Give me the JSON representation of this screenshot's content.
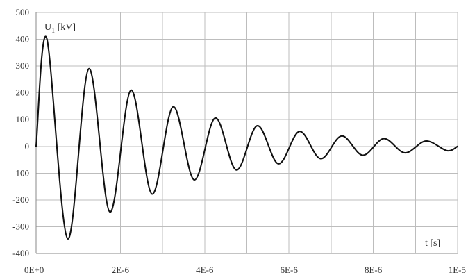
{
  "chart_data": {
    "type": "line",
    "title": "",
    "ylabel": {
      "main": "U",
      "sub": "1",
      "unit": " [kV]"
    },
    "xlabel": "t [s]",
    "xlim": [
      0,
      1e-05
    ],
    "ylim": [
      -400,
      500
    ],
    "grid": true,
    "legend": "none",
    "x_ticks": [
      {
        "value": 0,
        "label": "0E+0"
      },
      {
        "value": 2e-06,
        "label": "2E-6"
      },
      {
        "value": 4e-06,
        "label": "4E-6"
      },
      {
        "value": 6e-06,
        "label": "6E-6"
      },
      {
        "value": 8e-06,
        "label": "8E-6"
      },
      {
        "value": 1e-05,
        "label": "1E-5"
      }
    ],
    "x_grid": [
      0,
      1e-06,
      2e-06,
      3e-06,
      4e-06,
      5e-06,
      6e-06,
      7e-06,
      8e-06,
      9e-06,
      1e-05
    ],
    "y_ticks": [
      {
        "value": -400,
        "label": "-400"
      },
      {
        "value": -300,
        "label": "-300"
      },
      {
        "value": -200,
        "label": "-200"
      },
      {
        "value": -100,
        "label": "-100"
      },
      {
        "value": 0,
        "label": "0"
      },
      {
        "value": 100,
        "label": "100"
      },
      {
        "value": 200,
        "label": "200"
      },
      {
        "value": 300,
        "label": "300"
      },
      {
        "value": 400,
        "label": "400"
      },
      {
        "value": 500,
        "label": "500"
      }
    ],
    "series": [
      {
        "color": "#111111",
        "x": [
          0,
          2.5e-07,
          7.5e-07,
          1.25e-06,
          1.75e-06,
          2.25e-06,
          2.75e-06,
          3.25e-06,
          3.75e-06,
          4.25e-06,
          4.75e-06,
          5.25e-06,
          5.75e-06,
          6.25e-06,
          6.75e-06,
          7.25e-06,
          7.75e-06,
          8.25e-06,
          8.75e-06,
          9.25e-06,
          9.75e-06,
          1e-05
        ],
        "y": [
          0,
          405,
          -345,
          290,
          -245,
          210,
          -178,
          148,
          -125,
          106,
          -88,
          77,
          -65,
          56,
          -46,
          39,
          -33,
          29,
          -24,
          20,
          -16,
          0
        ]
      }
    ]
  }
}
